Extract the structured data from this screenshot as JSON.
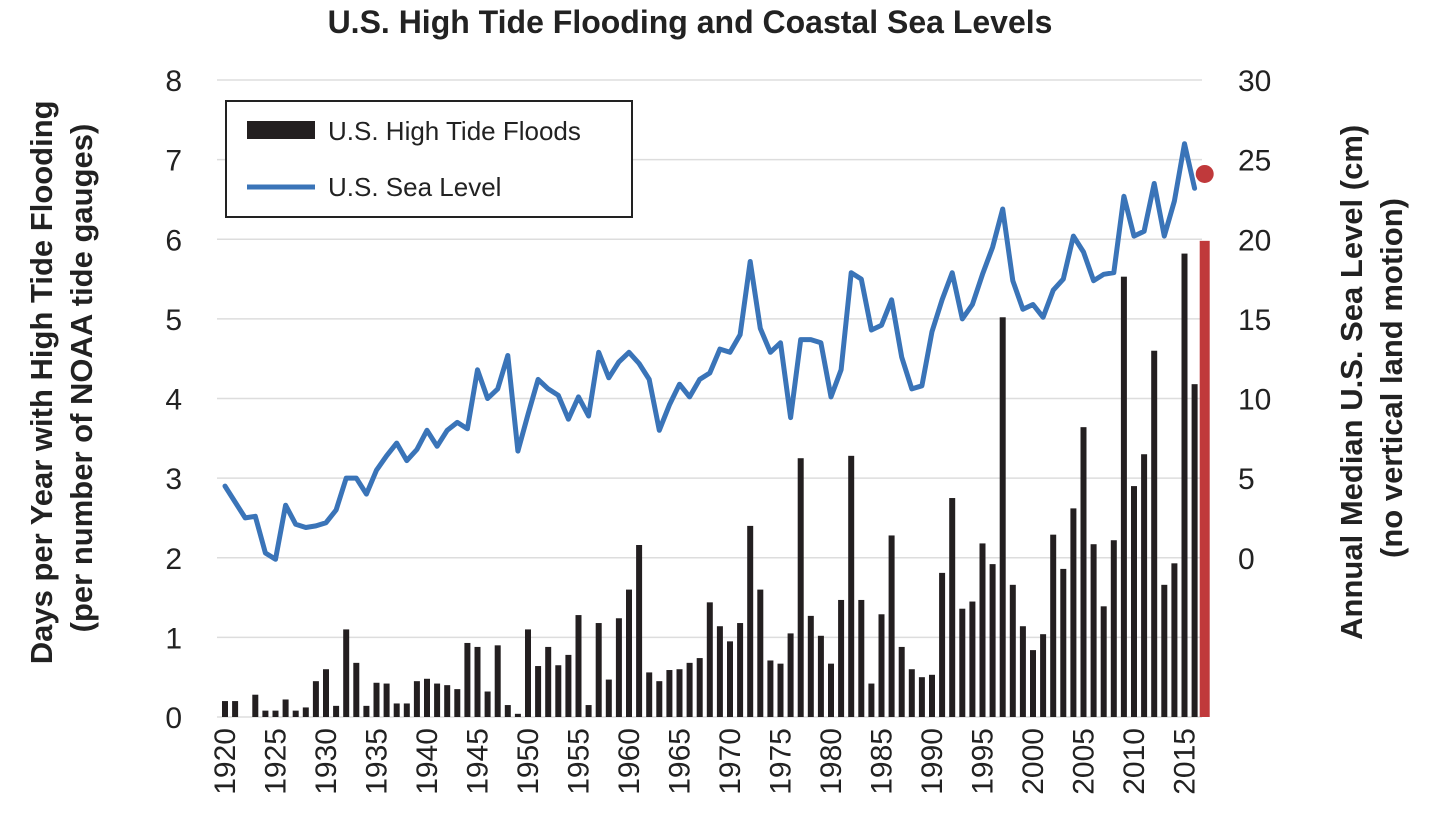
{
  "chart_data": {
    "type": "bar",
    "title": "U.S. High Tide Flooding and Coastal Sea Levels",
    "ylabel": [
      "Days per Year with High Tide Flooding",
      "(per number of NOAA tide gauges)"
    ],
    "y2label": [
      "Annual Median U.S. Sea Level  (cm)",
      "(no vertical land motion)"
    ],
    "ylim": [
      0,
      8
    ],
    "y2lim": [
      -10,
      30
    ],
    "y_ticks": [
      "0",
      "1",
      "2",
      "3",
      "4",
      "5",
      "6",
      "7",
      "8"
    ],
    "y2_ticks": [
      "0",
      "5",
      "10",
      "15",
      "20",
      "25",
      "30"
    ],
    "x_ticks": [
      "1920",
      "1925",
      "1930",
      "1935",
      "1940",
      "1945",
      "1950",
      "1955",
      "1960",
      "1965",
      "1970",
      "1975",
      "1980",
      "1985",
      "1990",
      "1995",
      "2000",
      "2005",
      "2010",
      "2015"
    ],
    "grid": true,
    "legend": {
      "position": "top-left"
    },
    "colors": {
      "bars": "#231f20",
      "line": "#3a74b8",
      "highlight": "#c0393b",
      "grid": "#dddddd"
    },
    "years": [
      1920,
      1921,
      1922,
      1923,
      1924,
      1925,
      1926,
      1927,
      1928,
      1929,
      1930,
      1931,
      1932,
      1933,
      1934,
      1935,
      1936,
      1937,
      1938,
      1939,
      1940,
      1941,
      1942,
      1943,
      1944,
      1945,
      1946,
      1947,
      1948,
      1949,
      1950,
      1951,
      1952,
      1953,
      1954,
      1955,
      1956,
      1957,
      1958,
      1959,
      1960,
      1961,
      1962,
      1963,
      1964,
      1965,
      1966,
      1967,
      1968,
      1969,
      1970,
      1971,
      1972,
      1973,
      1974,
      1975,
      1976,
      1977,
      1978,
      1979,
      1980,
      1981,
      1982,
      1983,
      1984,
      1985,
      1986,
      1987,
      1988,
      1989,
      1990,
      1991,
      1992,
      1993,
      1994,
      1995,
      1996,
      1997,
      1998,
      1999,
      2000,
      2001,
      2002,
      2003,
      2004,
      2005,
      2006,
      2007,
      2008,
      2009,
      2010,
      2011,
      2012,
      2013,
      2014,
      2015,
      2016
    ],
    "series": [
      {
        "name": "U.S. High Tide Floods",
        "type": "bar",
        "axis": "left",
        "values": [
          0.2,
          0.2,
          0,
          0.28,
          0.08,
          0.08,
          0.22,
          0.08,
          0.12,
          0.45,
          0.6,
          0.14,
          1.1,
          0.68,
          0.14,
          0.43,
          0.42,
          0.17,
          0.17,
          0.45,
          0.48,
          0.42,
          0.4,
          0.35,
          0.93,
          0.88,
          0.32,
          0.9,
          0.15,
          0.04,
          1.1,
          0.64,
          0.88,
          0.65,
          0.78,
          1.28,
          0.15,
          1.18,
          0.47,
          1.24,
          1.6,
          2.16,
          0.56,
          0.45,
          0.59,
          0.6,
          0.68,
          0.74,
          1.44,
          1.14,
          0.95,
          1.18,
          2.4,
          1.6,
          0.71,
          0.67,
          1.05,
          3.25,
          1.27,
          1.02,
          0.67,
          1.47,
          3.28,
          1.47,
          0.42,
          1.29,
          2.28,
          0.88,
          0.6,
          0.5,
          0.53,
          1.81,
          2.75,
          1.36,
          1.45,
          2.18,
          1.92,
          5.02,
          1.66,
          1.14,
          0.84,
          1.04,
          2.29,
          1.86,
          2.62,
          3.64,
          2.17,
          1.39,
          2.22,
          5.53,
          2.9,
          3.3,
          4.6,
          1.66,
          1.93,
          5.82,
          4.18
        ]
      },
      {
        "name": "U.S. Sea Level",
        "type": "line",
        "axis": "right",
        "values": [
          4.5,
          3.5,
          2.5,
          2.6,
          0.3,
          -0.1,
          3.3,
          2.1,
          1.9,
          2.0,
          2.2,
          3.0,
          5.0,
          5.0,
          4.0,
          5.5,
          6.4,
          7.2,
          6.1,
          6.8,
          8.0,
          7.0,
          8.0,
          8.5,
          8.1,
          11.8,
          10.0,
          10.6,
          12.7,
          6.7,
          9.0,
          11.2,
          10.6,
          10.2,
          8.7,
          10.1,
          8.9,
          12.9,
          11.3,
          12.3,
          12.9,
          12.2,
          11.2,
          8.0,
          9.6,
          10.9,
          10.1,
          11.2,
          11.6,
          13.1,
          12.9,
          14.0,
          18.6,
          14.4,
          12.9,
          13.5,
          8.8,
          13.7,
          13.7,
          13.5,
          10.1,
          11.8,
          17.9,
          17.5,
          14.3,
          14.6,
          16.2,
          12.6,
          10.6,
          10.8,
          14.2,
          16.2,
          17.9,
          15.0,
          15.9,
          17.8,
          19.5,
          21.9,
          17.4,
          15.6,
          15.9,
          15.1,
          16.8,
          17.5,
          20.2,
          19.2,
          17.4,
          17.8,
          17.9,
          22.7,
          20.2,
          20.5,
          23.5,
          20.2,
          22.4,
          26.0,
          23.2
        ]
      }
    ],
    "highlight": {
      "year": 2017,
      "bar_value": 5.98,
      "sea_level": 24.1
    }
  },
  "legend_items": [
    "U.S. High Tide Floods",
    "U.S. Sea Level"
  ]
}
